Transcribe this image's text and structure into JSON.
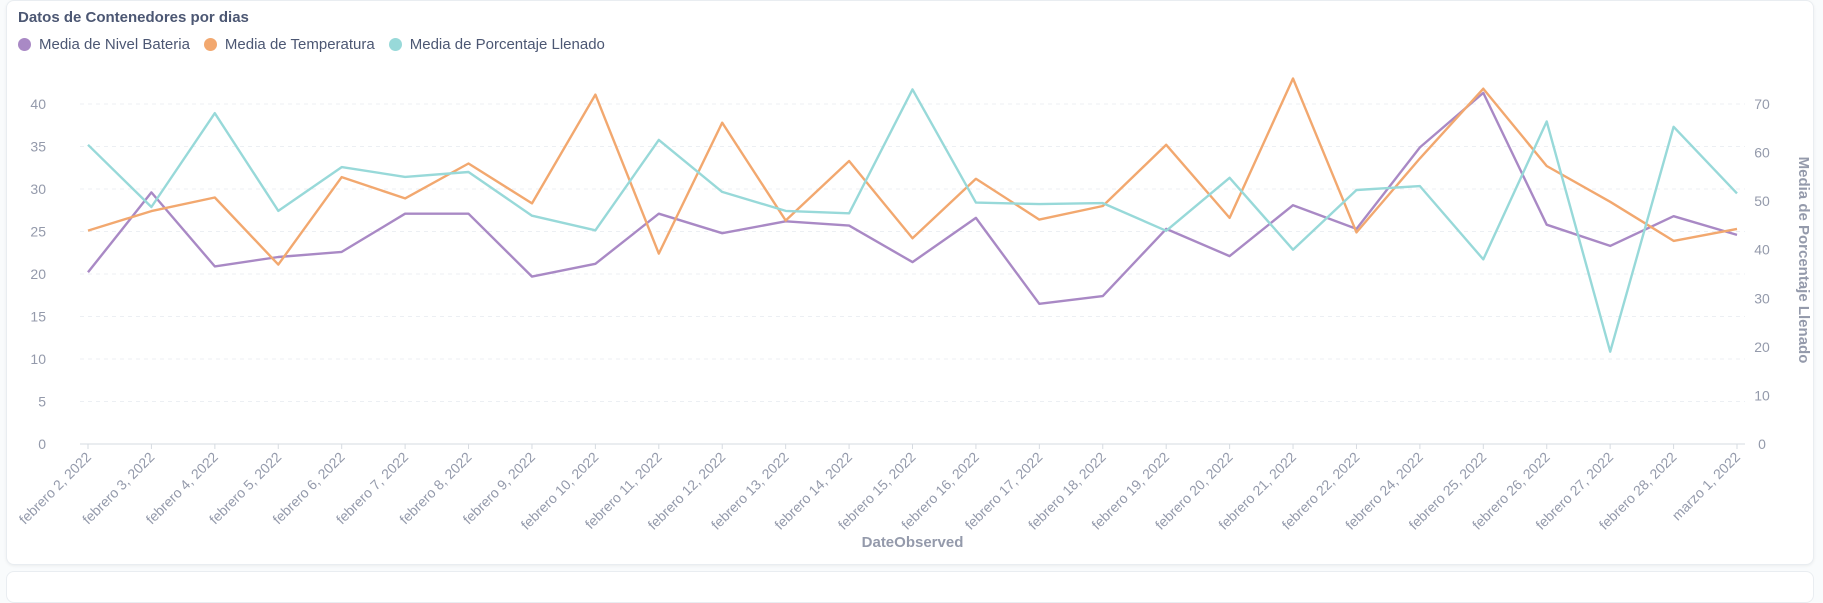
{
  "card": {
    "title": "Datos de Contenedores por dias"
  },
  "chart_data": {
    "type": "line",
    "title": "Datos de Contenedores por dias",
    "xlabel": "DateObserved",
    "ylabel": "",
    "y2label": "Media de Porcentaje Llenado",
    "ylim": [
      0,
      40
    ],
    "y2lim": [
      0,
      70
    ],
    "yticks": [
      0,
      5,
      10,
      15,
      20,
      25,
      30,
      35,
      40
    ],
    "y2ticks": [
      0,
      10,
      20,
      30,
      40,
      50,
      60,
      70
    ],
    "grid": true,
    "legend_position": "top-left",
    "categories": [
      "febrero 2, 2022",
      "febrero 3, 2022",
      "febrero 4, 2022",
      "febrero 5, 2022",
      "febrero 6, 2022",
      "febrero 7, 2022",
      "febrero 8, 2022",
      "febrero 9, 2022",
      "febrero 10, 2022",
      "febrero 11, 2022",
      "febrero 12, 2022",
      "febrero 13, 2022",
      "febrero 14, 2022",
      "febrero 15, 2022",
      "febrero 16, 2022",
      "febrero 17, 2022",
      "febrero 18, 2022",
      "febrero 19, 2022",
      "febrero 20, 2022",
      "febrero 21, 2022",
      "febrero 22, 2022",
      "febrero 24, 2022",
      "febrero 25, 2022",
      "febrero 26, 2022",
      "febrero 27, 2022",
      "febrero 28, 2022",
      "marzo 1, 2022"
    ],
    "series": [
      {
        "name": "Media de Nivel Bateria",
        "color": "#a989c5",
        "axis": "left",
        "values": [
          20.2,
          29.6,
          20.9,
          22.0,
          22.6,
          27.1,
          27.1,
          19.7,
          21.2,
          27.1,
          24.8,
          26.2,
          25.7,
          21.4,
          26.6,
          16.5,
          17.4,
          25.3,
          22.1,
          28.1,
          25.3,
          34.9,
          41.3,
          25.8,
          23.3,
          26.8,
          24.6
        ]
      },
      {
        "name": "Media de Temperatura",
        "color": "#f2a86f",
        "axis": "left",
        "values": [
          25.1,
          27.4,
          29.0,
          21.1,
          31.4,
          28.9,
          33.0,
          28.3,
          41.1,
          22.4,
          37.8,
          26.3,
          33.3,
          24.2,
          31.2,
          26.4,
          28.0,
          35.2,
          26.6,
          43.0,
          24.9,
          33.6,
          41.8,
          32.7,
          28.5,
          23.9,
          25.3
        ]
      },
      {
        "name": "Media de Porcentaje Llenado",
        "color": "#98d9d9",
        "axis": "right",
        "values": [
          61.6,
          48.8,
          68.1,
          48.0,
          57.0,
          55.0,
          56.0,
          47.0,
          44.0,
          62.6,
          51.9,
          48.0,
          47.5,
          73.0,
          49.7,
          49.4,
          49.6,
          43.9,
          54.8,
          40.0,
          52.3,
          53.1,
          38.0,
          66.4,
          19.0,
          65.3,
          51.6
        ]
      }
    ]
  }
}
